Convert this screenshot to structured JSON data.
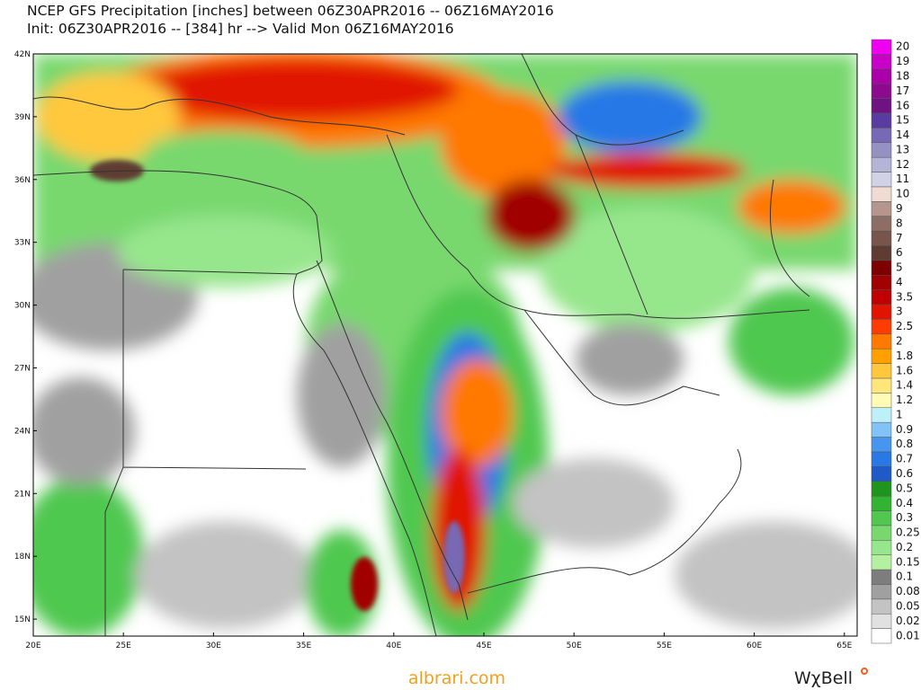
{
  "header": {
    "title": "NCEP GFS Precipitation [inches] between 06Z30APR2016 -- 06Z16MAY2016",
    "subtitle": "Init: 06Z30APR2016 -- [384] hr --> Valid Mon 06Z16MAY2016"
  },
  "map": {
    "lat_labels": [
      "42N",
      "39N",
      "36N",
      "33N",
      "30N",
      "27N",
      "24N",
      "21N",
      "18N",
      "15N"
    ],
    "lon_labels": [
      "20E",
      "25E",
      "30E",
      "35E",
      "40E",
      "45E",
      "50E",
      "55E",
      "60E",
      "65E"
    ]
  },
  "colorbar": {
    "entries": [
      {
        "label": "0.01",
        "color": "#ffffff"
      },
      {
        "label": "0.02",
        "color": "#e1e1e1"
      },
      {
        "label": "0.05",
        "color": "#c3c3c3"
      },
      {
        "label": "0.08",
        "color": "#a0a0a0"
      },
      {
        "label": "0.1",
        "color": "#7d7d7d"
      },
      {
        "label": "0.15",
        "color": "#b4f0a0"
      },
      {
        "label": "0.2",
        "color": "#96e68c"
      },
      {
        "label": "0.25",
        "color": "#78d86e"
      },
      {
        "label": "0.3",
        "color": "#50c850"
      },
      {
        "label": "0.4",
        "color": "#32b432"
      },
      {
        "label": "0.5",
        "color": "#1e961e"
      },
      {
        "label": "0.6",
        "color": "#1e5ac8"
      },
      {
        "label": "0.7",
        "color": "#2878e6"
      },
      {
        "label": "0.8",
        "color": "#4696f0"
      },
      {
        "label": "0.9",
        "color": "#82c3f5"
      },
      {
        "label": "1",
        "color": "#bef0fa"
      },
      {
        "label": "1.2",
        "color": "#fffab4"
      },
      {
        "label": "1.4",
        "color": "#ffe678"
      },
      {
        "label": "1.6",
        "color": "#ffc83c"
      },
      {
        "label": "1.8",
        "color": "#ffa000"
      },
      {
        "label": "2",
        "color": "#ff7800"
      },
      {
        "label": "2.5",
        "color": "#ff3c00"
      },
      {
        "label": "3",
        "color": "#e11400"
      },
      {
        "label": "3.5",
        "color": "#c00000"
      },
      {
        "label": "4",
        "color": "#a00000"
      },
      {
        "label": "5",
        "color": "#7d0000"
      },
      {
        "label": "6",
        "color": "#5f3c32"
      },
      {
        "label": "7",
        "color": "#78554b"
      },
      {
        "label": "8",
        "color": "#8c6e64"
      },
      {
        "label": "9",
        "color": "#b4968c"
      },
      {
        "label": "10",
        "color": "#f0dcd2"
      },
      {
        "label": "11",
        "color": "#d2d2e6"
      },
      {
        "label": "12",
        "color": "#b4b4d7"
      },
      {
        "label": "13",
        "color": "#9691c3"
      },
      {
        "label": "14",
        "color": "#7869b4"
      },
      {
        "label": "15",
        "color": "#5a3ca0"
      },
      {
        "label": "16",
        "color": "#6e1482"
      },
      {
        "label": "17",
        "color": "#8c0a8c"
      },
      {
        "label": "18",
        "color": "#aa00aa"
      },
      {
        "label": "19",
        "color": "#c800c8"
      },
      {
        "label": "20",
        "color": "#f000f0"
      }
    ]
  },
  "footer": {
    "watermark": "albrari.com",
    "logo": "WχBell"
  }
}
